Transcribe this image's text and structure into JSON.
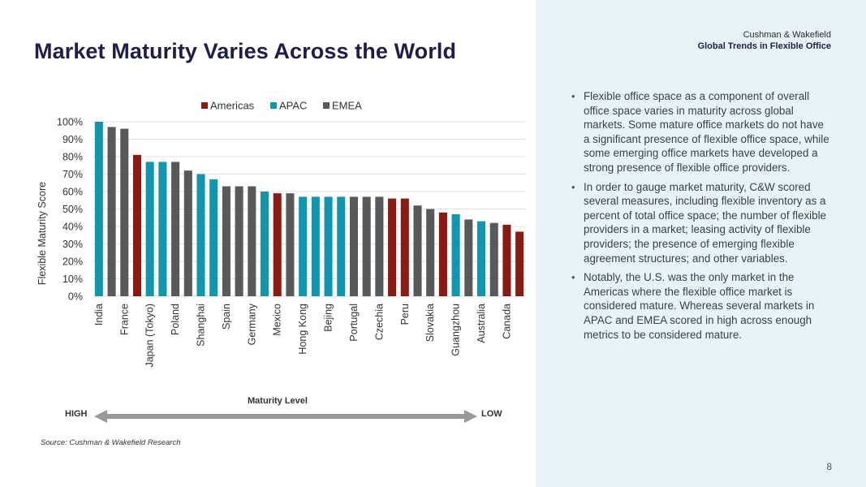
{
  "page": {
    "title": "Market Maturity Varies Across the World",
    "brand_name": "Cushman & Wakefield",
    "brand_subtitle": "Global Trends in Flexible Office",
    "page_number": "8",
    "source": "Source: Cushman & Wakefield Research"
  },
  "bullets": [
    "Flexible office space as a component of overall office space varies in maturity across global markets. Some mature office markets do not have a significant presence of flexible office space, while some emerging office markets have developed a strong presence of flexible office providers.",
    "In order to gauge market maturity, C&W scored several measures, including flexible inventory as a percent of total office space; the number of flexible providers in a market; leasing activity of flexible providers; the presence of emerging flexible agreement structures; and other variables.",
    "Notably, the U.S. was the only market in the Americas where the flexible office market is considered mature. Whereas several markets in APAC and EMEA scored in high across enough metrics to be considered mature."
  ],
  "maturity_scale": {
    "label": "Maturity Level",
    "high": "HIGH",
    "low": "LOW"
  },
  "colors": {
    "Americas": "#8b1a10",
    "APAC": "#1196b0",
    "EMEA": "#58595b",
    "arrow": "#999999",
    "grid": "#e2e2e2"
  },
  "chart_data": {
    "type": "bar",
    "ylabel": "Flexible Maturity Score",
    "ylim": [
      0,
      100
    ],
    "yticks": [
      0,
      10,
      20,
      30,
      40,
      50,
      60,
      70,
      80,
      90,
      100
    ],
    "ytick_labels": [
      "0%",
      "10%",
      "20%",
      "30%",
      "40%",
      "50%",
      "60%",
      "70%",
      "80%",
      "90%",
      "100%"
    ],
    "legend": [
      "Americas",
      "APAC",
      "EMEA"
    ],
    "legend_position": "top",
    "tick_labels": [
      "India",
      "France",
      "Japan (Tokyo)",
      "Poland",
      "Shanghai",
      "Spain",
      "Germany",
      "Mexico",
      "Hong Kong",
      "Bejing",
      "Portugal",
      "Czechia",
      "Peru",
      "Slovakia",
      "Guangzhou",
      "Australia",
      "Canada"
    ],
    "bars": [
      {
        "region": "APAC",
        "value": 100
      },
      {
        "region": "EMEA",
        "value": 97
      },
      {
        "region": "EMEA",
        "value": 96
      },
      {
        "region": "Americas",
        "value": 81
      },
      {
        "region": "APAC",
        "value": 77
      },
      {
        "region": "APAC",
        "value": 77
      },
      {
        "region": "EMEA",
        "value": 77
      },
      {
        "region": "EMEA",
        "value": 72
      },
      {
        "region": "APAC",
        "value": 70
      },
      {
        "region": "APAC",
        "value": 67
      },
      {
        "region": "EMEA",
        "value": 63
      },
      {
        "region": "EMEA",
        "value": 63
      },
      {
        "region": "EMEA",
        "value": 63
      },
      {
        "region": "APAC",
        "value": 60
      },
      {
        "region": "Americas",
        "value": 59
      },
      {
        "region": "EMEA",
        "value": 59
      },
      {
        "region": "APAC",
        "value": 57
      },
      {
        "region": "APAC",
        "value": 57
      },
      {
        "region": "APAC",
        "value": 57
      },
      {
        "region": "APAC",
        "value": 57
      },
      {
        "region": "EMEA",
        "value": 57
      },
      {
        "region": "EMEA",
        "value": 57
      },
      {
        "region": "EMEA",
        "value": 57
      },
      {
        "region": "Americas",
        "value": 56
      },
      {
        "region": "Americas",
        "value": 56
      },
      {
        "region": "EMEA",
        "value": 52
      },
      {
        "region": "EMEA",
        "value": 50
      },
      {
        "region": "Americas",
        "value": 48
      },
      {
        "region": "APAC",
        "value": 47
      },
      {
        "region": "EMEA",
        "value": 44
      },
      {
        "region": "APAC",
        "value": 43
      },
      {
        "region": "EMEA",
        "value": 42
      },
      {
        "region": "Americas",
        "value": 41
      },
      {
        "region": "Americas",
        "value": 37
      }
    ]
  }
}
